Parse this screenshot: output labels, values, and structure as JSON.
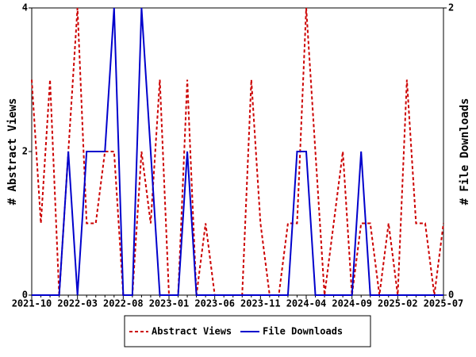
{
  "chart_data": {
    "type": "line",
    "categories": [
      "2021-10",
      null,
      null,
      null,
      null,
      "2022-03",
      null,
      null,
      null,
      null,
      "2022-08",
      null,
      null,
      null,
      null,
      "2023-01",
      null,
      null,
      null,
      null,
      "2023-06",
      null,
      null,
      null,
      null,
      "2023-11",
      null,
      null,
      null,
      null,
      "2024-04",
      null,
      null,
      null,
      null,
      "2024-09",
      null,
      null,
      null,
      null,
      "2025-02",
      null,
      null,
      null,
      null,
      "2025-07"
    ],
    "y_label": "# Abstract Views",
    "y2_label": "# File Downloads",
    "ylim": [
      0,
      4
    ],
    "yticks": [
      0,
      2,
      4
    ],
    "y2lim": [
      0,
      2
    ],
    "y2ticks": [
      0,
      2
    ],
    "series": [
      {
        "name": "Abstract Views",
        "color": "#cc0000",
        "dashed": true,
        "values": [
          3,
          1,
          3,
          0,
          2,
          4,
          1,
          1,
          2,
          2,
          0,
          0,
          2,
          1,
          3,
          0,
          0,
          3,
          0,
          1,
          0,
          0,
          0,
          0,
          3,
          1,
          0,
          0,
          1,
          1,
          4,
          2,
          0,
          1,
          2,
          0,
          1,
          1,
          0,
          1,
          0,
          3,
          1,
          1,
          0,
          1
        ]
      },
      {
        "name": "File Downloads",
        "color": "#0000cc",
        "dashed": false,
        "axis": "y2",
        "values": [
          0,
          0,
          0,
          0,
          1,
          0,
          1,
          1,
          1,
          2,
          0,
          0,
          2,
          1,
          0,
          0,
          0,
          1,
          0,
          0,
          0,
          0,
          0,
          0,
          0,
          0,
          0,
          0,
          0,
          1,
          1,
          0,
          0,
          0,
          0,
          0,
          1,
          0,
          0,
          0,
          0,
          0,
          0,
          0,
          0,
          0
        ]
      }
    ]
  }
}
